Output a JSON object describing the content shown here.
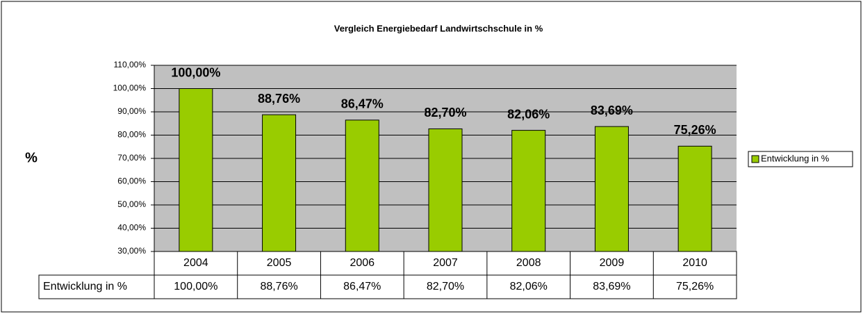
{
  "chart_data": {
    "type": "bar",
    "title": "Vergleich Energiebedarf Landwirtschschule in %",
    "y_label": "%",
    "categories": [
      "2004",
      "2005",
      "2006",
      "2007",
      "2008",
      "2009",
      "2010"
    ],
    "series": [
      {
        "name": "Entwicklung in %",
        "color": "#99cc00",
        "values": [
          100,
          88.76,
          86.47,
          82.7,
          82.06,
          83.69,
          75.26
        ],
        "value_labels": [
          "100,00%",
          "88,76%",
          "86,47%",
          "82,70%",
          "82,06%",
          "83,69%",
          "75,26%"
        ]
      }
    ],
    "ylim": [
      30,
      110
    ],
    "yticks": [
      {
        "value": 30,
        "label": "30,00%"
      },
      {
        "value": 40,
        "label": "40,00%"
      },
      {
        "value": 50,
        "label": "50,00%"
      },
      {
        "value": 60,
        "label": "60,00%"
      },
      {
        "value": 70,
        "label": "70,00%"
      },
      {
        "value": 80,
        "label": "80,00%"
      },
      {
        "value": 90,
        "label": "90,00%"
      },
      {
        "value": 100,
        "label": "100,00%"
      },
      {
        "value": 110,
        "label": "110,00%"
      }
    ],
    "grid": true,
    "legend": "right",
    "data_table": true
  }
}
